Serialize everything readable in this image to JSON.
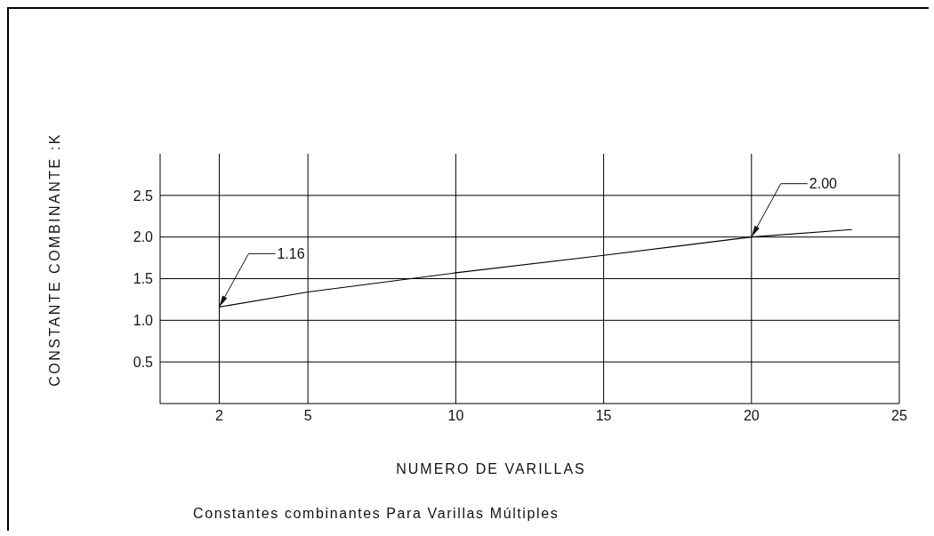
{
  "chart_data": {
    "type": "line",
    "title": "Constantes combinantes Para Varillas Múltiples",
    "xlabel": "NUMERO DE VARILLAS",
    "ylabel": "CONSTANTE COMBINANTE :K",
    "x": [
      2,
      5,
      10,
      15,
      20,
      23.4
    ],
    "series": [
      {
        "color": "#000000",
        "values": [
          1.16,
          1.34,
          1.57,
          1.78,
          2.0,
          2.09
        ]
      }
    ],
    "xlim": [
      0,
      25
    ],
    "xticks": [
      2,
      5,
      10,
      15,
      20,
      25
    ],
    "ylim": [
      0,
      3
    ],
    "yticks": [
      0.5,
      {
        "value": 1,
        "label": "1.0"
      },
      1.5,
      {
        "value": 2,
        "label": "2.0"
      },
      2.5
    ],
    "grid": true,
    "marker": "none",
    "line_style": "solid",
    "annotations": [
      {
        "text": "1.16",
        "x": 2,
        "y": 1.16
      },
      {
        "text": "2.00",
        "x": 20,
        "y": 2
      }
    ]
  }
}
